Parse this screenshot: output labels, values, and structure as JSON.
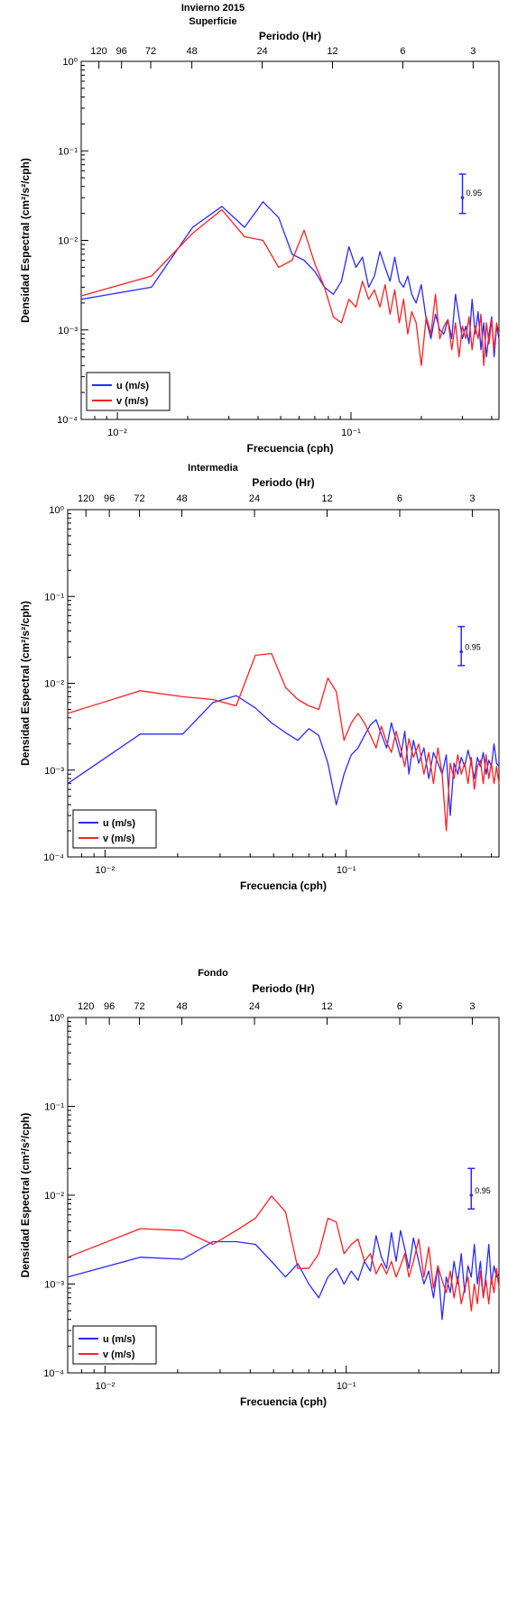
{
  "figure_title": "Invierno 2015",
  "chart_data": [
    {
      "type": "line",
      "title": "Superficie",
      "xlabel": "Frecuencia (cph)",
      "ylabel": "Densidad Espectral (cm²/s²/cph)",
      "top_axis_label": "Periodo (Hr)",
      "x_scale": "log",
      "y_scale": "log",
      "xlim": [
        0.007,
        0.43
      ],
      "ylim": [
        0.0001,
        1
      ],
      "x_ticks": [
        {
          "value": 0.01,
          "label": "10⁻²"
        },
        {
          "value": 0.1,
          "label": "10⁻¹"
        }
      ],
      "y_ticks": [
        {
          "value": 1,
          "label": "10⁰"
        },
        {
          "value": 0.1,
          "label": "10⁻¹"
        },
        {
          "value": 0.01,
          "label": "10⁻²"
        },
        {
          "value": 0.001,
          "label": "10⁻³"
        },
        {
          "value": 0.0001,
          "label": "10⁻⁴"
        }
      ],
      "period_ticks": [
        {
          "hours": 120,
          "label": "120"
        },
        {
          "hours": 96,
          "label": "96"
        },
        {
          "hours": 72,
          "label": "72"
        },
        {
          "hours": 48,
          "label": "48"
        },
        {
          "hours": 24,
          "label": "24"
        },
        {
          "hours": 12,
          "label": "12"
        },
        {
          "hours": 6,
          "label": "6"
        },
        {
          "hours": 3,
          "label": "3"
        }
      ],
      "confidence": {
        "label": "0.95",
        "x": 0.3,
        "center": 0.03,
        "low": 0.02,
        "high": 0.055
      },
      "legend_position": "bottom-left",
      "series": [
        {
          "name": "u (m/s)",
          "color": "#2a2aff",
          "x": [
            0.007,
            0.014,
            0.021,
            0.028,
            0.035,
            0.042,
            0.049,
            0.056,
            0.063,
            0.07,
            0.077,
            0.084,
            0.091,
            0.098,
            0.105,
            0.112,
            0.119,
            0.126,
            0.133,
            0.14,
            0.147,
            0.154,
            0.161,
            0.168,
            0.175,
            0.182,
            0.19,
            0.2,
            0.21,
            0.22,
            0.23,
            0.24,
            0.25,
            0.26,
            0.27,
            0.28,
            0.29,
            0.3,
            0.31,
            0.32,
            0.33,
            0.34,
            0.35,
            0.36,
            0.37,
            0.38,
            0.39,
            0.4,
            0.41,
            0.42,
            0.43
          ],
          "values": [
            0.0022,
            0.003,
            0.014,
            0.024,
            0.014,
            0.027,
            0.018,
            0.007,
            0.006,
            0.0045,
            0.003,
            0.0025,
            0.0035,
            0.0085,
            0.005,
            0.0065,
            0.003,
            0.004,
            0.0075,
            0.005,
            0.0035,
            0.0065,
            0.0035,
            0.003,
            0.004,
            0.0025,
            0.002,
            0.0032,
            0.0013,
            0.0008,
            0.0015,
            0.001,
            0.0009,
            0.0013,
            0.0008,
            0.0025,
            0.0014,
            0.0008,
            0.0011,
            0.0007,
            0.0022,
            0.0009,
            0.0016,
            0.0006,
            0.0012,
            0.0005,
            0.0009,
            0.0014,
            0.0005,
            0.0011,
            0.0008
          ]
        },
        {
          "name": "v (m/s)",
          "color": "#ff2020",
          "x": [
            0.007,
            0.014,
            0.021,
            0.028,
            0.035,
            0.042,
            0.049,
            0.056,
            0.063,
            0.07,
            0.077,
            0.084,
            0.091,
            0.098,
            0.105,
            0.112,
            0.119,
            0.126,
            0.133,
            0.14,
            0.147,
            0.154,
            0.161,
            0.168,
            0.175,
            0.182,
            0.19,
            0.2,
            0.21,
            0.22,
            0.23,
            0.24,
            0.25,
            0.26,
            0.27,
            0.28,
            0.29,
            0.3,
            0.31,
            0.32,
            0.33,
            0.34,
            0.35,
            0.36,
            0.37,
            0.38,
            0.39,
            0.4,
            0.41,
            0.42,
            0.43
          ],
          "values": [
            0.0024,
            0.004,
            0.012,
            0.022,
            0.011,
            0.01,
            0.005,
            0.006,
            0.013,
            0.0055,
            0.003,
            0.0014,
            0.0012,
            0.0022,
            0.0018,
            0.0035,
            0.0022,
            0.0028,
            0.0018,
            0.0032,
            0.0015,
            0.0028,
            0.0012,
            0.0022,
            0.0009,
            0.0016,
            0.0012,
            0.0004,
            0.0014,
            0.0009,
            0.0025,
            0.0008,
            0.0011,
            0.0013,
            0.0006,
            0.0012,
            0.0005,
            0.0011,
            0.0008,
            0.0014,
            0.0006,
            0.0011,
            0.0008,
            0.0015,
            0.0004,
            0.0012,
            0.0007,
            0.0013,
            0.0006,
            0.0012,
            0.0009
          ]
        }
      ]
    },
    {
      "type": "line",
      "title": "Intermedia",
      "xlabel": "Frecuencia (cph)",
      "ylabel": "Densidad Espectral (cm²/s²/cph)",
      "top_axis_label": "Periodo (Hr)",
      "x_scale": "log",
      "y_scale": "log",
      "xlim": [
        0.007,
        0.43
      ],
      "ylim": [
        0.0001,
        1
      ],
      "x_ticks": [
        {
          "value": 0.01,
          "label": "10⁻²"
        },
        {
          "value": 0.1,
          "label": "10⁻¹"
        }
      ],
      "y_ticks": [
        {
          "value": 1,
          "label": "10⁰"
        },
        {
          "value": 0.1,
          "label": "10⁻¹"
        },
        {
          "value": 0.01,
          "label": "10⁻²"
        },
        {
          "value": 0.001,
          "label": "10⁻³"
        },
        {
          "value": 0.0001,
          "label": "10⁻⁴"
        }
      ],
      "period_ticks": [
        {
          "hours": 120,
          "label": "120"
        },
        {
          "hours": 96,
          "label": "96"
        },
        {
          "hours": 72,
          "label": "72"
        },
        {
          "hours": 48,
          "label": "48"
        },
        {
          "hours": 24,
          "label": "24"
        },
        {
          "hours": 12,
          "label": "12"
        },
        {
          "hours": 6,
          "label": "6"
        },
        {
          "hours": 3,
          "label": "3"
        }
      ],
      "confidence": {
        "label": "0.95",
        "x": 0.3,
        "center": 0.023,
        "low": 0.016,
        "high": 0.045
      },
      "legend_position": "bottom-left",
      "series": [
        {
          "name": "u (m/s)",
          "color": "#2a2aff",
          "x": [
            0.007,
            0.014,
            0.021,
            0.028,
            0.035,
            0.042,
            0.049,
            0.056,
            0.063,
            0.07,
            0.077,
            0.084,
            0.091,
            0.098,
            0.105,
            0.112,
            0.119,
            0.126,
            0.133,
            0.14,
            0.147,
            0.154,
            0.161,
            0.168,
            0.175,
            0.182,
            0.19,
            0.2,
            0.21,
            0.22,
            0.23,
            0.24,
            0.25,
            0.26,
            0.27,
            0.28,
            0.29,
            0.3,
            0.31,
            0.32,
            0.33,
            0.34,
            0.35,
            0.36,
            0.37,
            0.38,
            0.39,
            0.4,
            0.41,
            0.42,
            0.43
          ],
          "values": [
            0.0007,
            0.0026,
            0.0026,
            0.006,
            0.0072,
            0.0052,
            0.0035,
            0.0027,
            0.0022,
            0.003,
            0.0025,
            0.0012,
            0.0004,
            0.0009,
            0.0015,
            0.0018,
            0.0025,
            0.0033,
            0.0038,
            0.0026,
            0.0018,
            0.0035,
            0.0022,
            0.0014,
            0.0028,
            0.0009,
            0.0022,
            0.0012,
            0.0018,
            0.0008,
            0.0016,
            0.0012,
            0.0009,
            0.0015,
            0.0003,
            0.0012,
            0.0009,
            0.0014,
            0.0011,
            0.0017,
            0.0012,
            0.0008,
            0.0014,
            0.0011,
            0.0016,
            0.0009,
            0.0013,
            0.0011,
            0.002,
            0.0012,
            0.0011
          ]
        },
        {
          "name": "v (m/s)",
          "color": "#ff2020",
          "x": [
            0.007,
            0.014,
            0.021,
            0.028,
            0.035,
            0.042,
            0.049,
            0.056,
            0.063,
            0.07,
            0.077,
            0.084,
            0.091,
            0.098,
            0.105,
            0.112,
            0.119,
            0.126,
            0.133,
            0.14,
            0.147,
            0.154,
            0.161,
            0.168,
            0.175,
            0.182,
            0.19,
            0.2,
            0.21,
            0.22,
            0.23,
            0.24,
            0.25,
            0.26,
            0.27,
            0.28,
            0.29,
            0.3,
            0.31,
            0.32,
            0.33,
            0.34,
            0.35,
            0.36,
            0.37,
            0.38,
            0.39,
            0.4,
            0.41,
            0.42,
            0.43
          ],
          "values": [
            0.0045,
            0.0082,
            0.007,
            0.0065,
            0.0055,
            0.021,
            0.022,
            0.009,
            0.0065,
            0.0055,
            0.005,
            0.0115,
            0.008,
            0.0022,
            0.0035,
            0.0045,
            0.0035,
            0.0025,
            0.0018,
            0.0032,
            0.0021,
            0.0016,
            0.0028,
            0.0018,
            0.0011,
            0.0023,
            0.0014,
            0.002,
            0.0009,
            0.0016,
            0.0007,
            0.0018,
            0.0009,
            0.0002,
            0.0012,
            0.0008,
            0.0015,
            0.0009,
            0.0012,
            0.0007,
            0.0014,
            0.0006,
            0.0011,
            0.0013,
            0.0007,
            0.0015,
            0.0008,
            0.0012,
            0.0007,
            0.0011,
            0.0007
          ]
        }
      ]
    },
    {
      "type": "line",
      "title": "Fondo",
      "xlabel": "Frecuencia (cph)",
      "ylabel": "Densidad Espectral (cm²/s²/cph)",
      "top_axis_label": "Periodo (Hr)",
      "x_scale": "log",
      "y_scale": "log",
      "xlim": [
        0.007,
        0.43
      ],
      "ylim": [
        0.0001,
        1
      ],
      "x_ticks": [
        {
          "value": 0.01,
          "label": "10⁻²"
        },
        {
          "value": 0.1,
          "label": "10⁻¹"
        }
      ],
      "y_ticks": [
        {
          "value": 1,
          "label": "10⁰"
        },
        {
          "value": 0.1,
          "label": "10⁻¹"
        },
        {
          "value": 0.01,
          "label": "10⁻²"
        },
        {
          "value": 0.001,
          "label": "10⁻³"
        },
        {
          "value": 0.0001,
          "label": "10⁻⁴"
        }
      ],
      "period_ticks": [
        {
          "hours": 120,
          "label": "120"
        },
        {
          "hours": 96,
          "label": "96"
        },
        {
          "hours": 72,
          "label": "72"
        },
        {
          "hours": 48,
          "label": "48"
        },
        {
          "hours": 24,
          "label": "24"
        },
        {
          "hours": 12,
          "label": "12"
        },
        {
          "hours": 6,
          "label": "6"
        },
        {
          "hours": 3,
          "label": "3"
        }
      ],
      "confidence": {
        "label": "0.95",
        "x": 0.33,
        "center": 0.01,
        "low": 0.007,
        "high": 0.02
      },
      "legend_position": "bottom-left",
      "series": [
        {
          "name": "u (m/s)",
          "color": "#2a2aff",
          "x": [
            0.007,
            0.014,
            0.021,
            0.028,
            0.035,
            0.042,
            0.049,
            0.056,
            0.063,
            0.07,
            0.077,
            0.084,
            0.091,
            0.098,
            0.105,
            0.112,
            0.119,
            0.126,
            0.133,
            0.14,
            0.147,
            0.154,
            0.161,
            0.168,
            0.175,
            0.182,
            0.19,
            0.2,
            0.21,
            0.22,
            0.23,
            0.24,
            0.25,
            0.26,
            0.27,
            0.28,
            0.29,
            0.3,
            0.31,
            0.32,
            0.33,
            0.34,
            0.35,
            0.36,
            0.37,
            0.38,
            0.39,
            0.4,
            0.41,
            0.42,
            0.43
          ],
          "values": [
            0.0012,
            0.002,
            0.0019,
            0.003,
            0.003,
            0.0028,
            0.0018,
            0.0012,
            0.0017,
            0.001,
            0.0007,
            0.0012,
            0.0015,
            0.001,
            0.0014,
            0.0011,
            0.0018,
            0.0014,
            0.0035,
            0.002,
            0.0015,
            0.0038,
            0.0018,
            0.004,
            0.0025,
            0.0015,
            0.0033,
            0.0018,
            0.001,
            0.0014,
            0.0007,
            0.0016,
            0.0004,
            0.0012,
            0.0008,
            0.0018,
            0.001,
            0.0022,
            0.0008,
            0.0016,
            0.0012,
            0.0028,
            0.001,
            0.0018,
            0.0007,
            0.0013,
            0.0028,
            0.001,
            0.0016,
            0.0012,
            0.0013
          ]
        },
        {
          "name": "v (m/s)",
          "color": "#ff2020",
          "x": [
            0.007,
            0.014,
            0.021,
            0.028,
            0.035,
            0.042,
            0.049,
            0.056,
            0.063,
            0.07,
            0.077,
            0.084,
            0.091,
            0.098,
            0.105,
            0.112,
            0.119,
            0.126,
            0.133,
            0.14,
            0.147,
            0.154,
            0.161,
            0.168,
            0.175,
            0.182,
            0.19,
            0.2,
            0.21,
            0.22,
            0.23,
            0.24,
            0.25,
            0.26,
            0.27,
            0.28,
            0.29,
            0.3,
            0.31,
            0.32,
            0.33,
            0.34,
            0.35,
            0.36,
            0.37,
            0.38,
            0.39,
            0.4,
            0.41,
            0.42,
            0.43
          ],
          "values": [
            0.002,
            0.0042,
            0.004,
            0.0028,
            0.004,
            0.0055,
            0.0098,
            0.0065,
            0.0015,
            0.0015,
            0.0022,
            0.0055,
            0.005,
            0.0022,
            0.0028,
            0.0032,
            0.0018,
            0.0022,
            0.0013,
            0.0017,
            0.0013,
            0.0018,
            0.0012,
            0.0016,
            0.0022,
            0.0012,
            0.0018,
            0.0032,
            0.0012,
            0.0026,
            0.0009,
            0.0016,
            0.0011,
            0.0008,
            0.0014,
            0.0007,
            0.0012,
            0.0006,
            0.0009,
            0.0012,
            0.0005,
            0.001,
            0.0006,
            0.0014,
            0.0007,
            0.0011,
            0.0006,
            0.0012,
            0.0008,
            0.0015,
            0.0009
          ]
        }
      ]
    }
  ]
}
